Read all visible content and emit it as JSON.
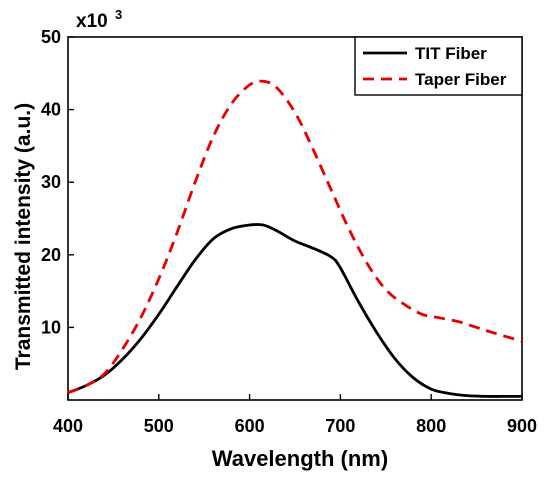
{
  "chart_data": {
    "type": "line",
    "title": "",
    "xlabel": "Wavelength (nm)",
    "ylabel": "Transmitted intensity (a.u.)",
    "y_multiplier_label": {
      "base": "x10",
      "exponent": "3"
    },
    "xlim": [
      400,
      900
    ],
    "ylim": [
      0,
      50
    ],
    "x_ticks": [
      400,
      500,
      600,
      700,
      800,
      900
    ],
    "y_ticks": [
      10,
      20,
      30,
      40,
      50
    ],
    "grid": false,
    "legend_position": "top-right",
    "series": [
      {
        "name": "TIT Fiber",
        "color": "#000000",
        "style": "solid",
        "x": [
          400,
          420,
          440,
          460,
          480,
          500,
          520,
          540,
          560,
          580,
          600,
          615,
          630,
          650,
          670,
          690,
          700,
          720,
          740,
          760,
          780,
          800,
          820,
          840,
          860,
          880,
          900
        ],
        "y": [
          1.0,
          2.0,
          3.4,
          5.6,
          8.4,
          11.8,
          15.6,
          19.3,
          22.2,
          23.6,
          24.1,
          24.1,
          23.3,
          21.9,
          20.9,
          19.7,
          18.2,
          13.5,
          9.3,
          5.7,
          3.1,
          1.5,
          0.9,
          0.6,
          0.5,
          0.5,
          0.5
        ]
      },
      {
        "name": "Taper Fiber",
        "color": "#e60000",
        "style": "dashed",
        "x": [
          400,
          420,
          440,
          460,
          480,
          500,
          520,
          540,
          560,
          580,
          600,
          615,
          630,
          650,
          670,
          690,
          710,
          730,
          750,
          770,
          790,
          810,
          830,
          850,
          870,
          900
        ],
        "y": [
          1.0,
          2.0,
          3.6,
          7.0,
          11.3,
          16.7,
          23.0,
          30.0,
          36.3,
          40.8,
          43.4,
          43.9,
          43.0,
          39.6,
          34.5,
          28.9,
          23.4,
          18.7,
          15.2,
          13.2,
          11.8,
          11.3,
          10.8,
          10.0,
          9.2,
          8.1
        ]
      }
    ]
  }
}
